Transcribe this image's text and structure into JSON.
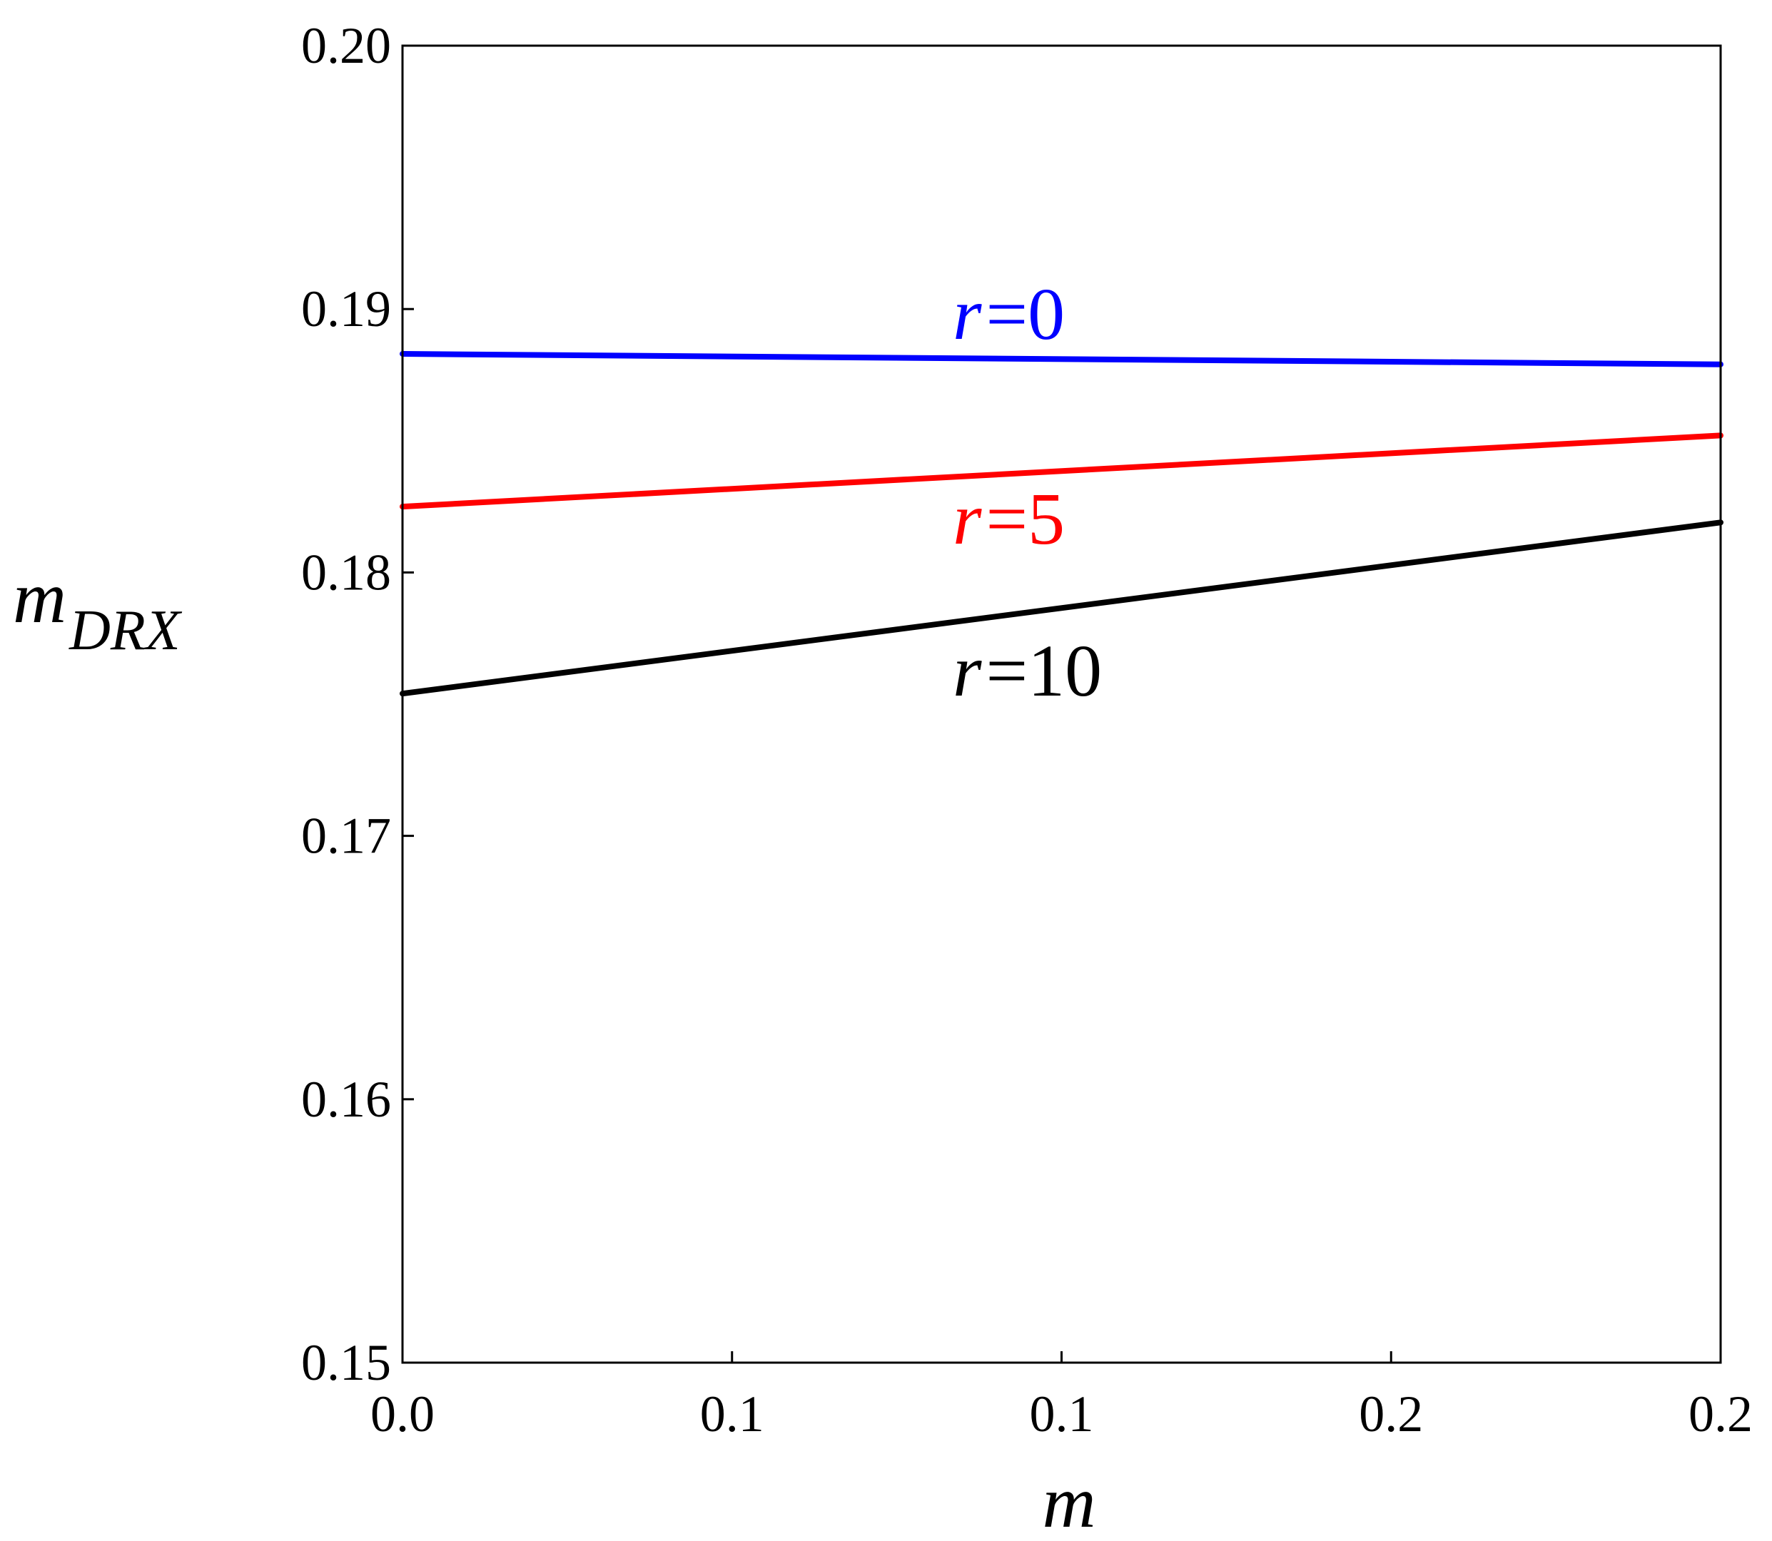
{
  "chart_data": {
    "type": "line",
    "title": "",
    "xlabel": "m",
    "ylabel": "m",
    "ylabel_subscript": "DRX",
    "xlim": [
      0,
      0.2
    ],
    "ylim": [
      0.15,
      0.2
    ],
    "x_tick_labels": [
      "0.0",
      "0.1",
      "0.1",
      "0.2",
      "0.2"
    ],
    "y_ticks": [
      0.15,
      0.16,
      0.17,
      0.18,
      0.19,
      0.2
    ],
    "y_tick_labels": [
      "0.15",
      "0.16",
      "0.17",
      "0.18",
      "0.19",
      "0.20"
    ],
    "grid": false,
    "legend": "none",
    "series": [
      {
        "key": "r0",
        "label_var": "r",
        "label_eq": "=0",
        "color": "#0000ff",
        "x": [
          0,
          0.2
        ],
        "y": [
          0.1883,
          0.1879
        ]
      },
      {
        "key": "r5",
        "label_var": "r",
        "label_eq": "=5",
        "color": "#ff0000",
        "x": [
          0,
          0.2
        ],
        "y": [
          0.1825,
          0.1852
        ]
      },
      {
        "key": "r10",
        "label_var": "r",
        "label_eq": "=10",
        "color": "#000000",
        "x": [
          0,
          0.2
        ],
        "y": [
          0.1754,
          0.1819
        ]
      }
    ]
  }
}
